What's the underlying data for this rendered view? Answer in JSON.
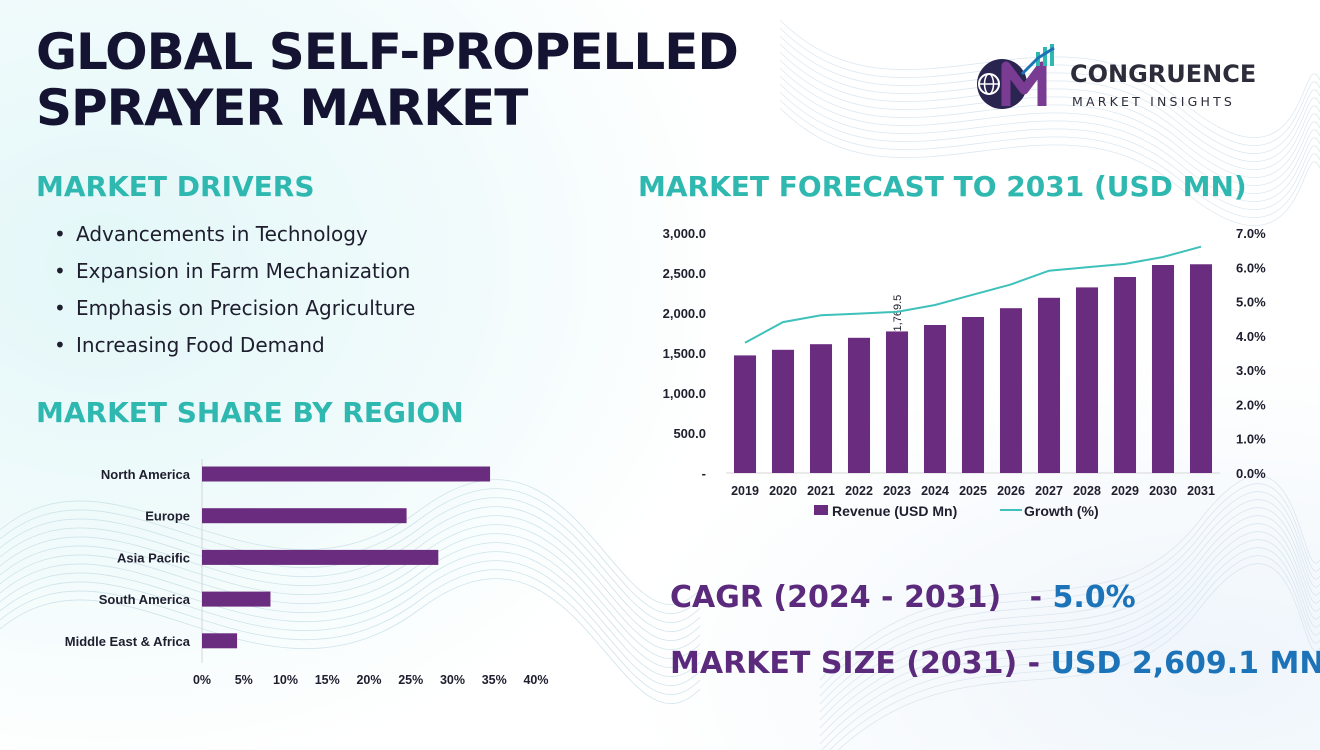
{
  "title_lines": [
    "GLOBAL SELF-PROPELLED",
    "SPRAYER MARKET"
  ],
  "logo": {
    "name": "CONGRUENCE",
    "tagline": "MARKET INSIGHTS",
    "icon": "cmi-monogram-icon"
  },
  "colors": {
    "title": "#141432",
    "heading": "#2fb8b0",
    "bar": "#6a2c7e",
    "growth_line": "#3fc1bb",
    "value": "#1d73b8"
  },
  "drivers": {
    "heading": "MARKET DRIVERS",
    "items": [
      "Advancements in Technology",
      "Expansion in Farm Mechanization",
      "Emphasis on Precision Agriculture",
      "Increasing Food Demand"
    ]
  },
  "region": {
    "heading": "MARKET SHARE BY REGION"
  },
  "forecast": {
    "heading": "MARKET FORECAST TO 2031 (USD MN)"
  },
  "stats": {
    "cagr_label": "CAGR (2024 - 2031)",
    "cagr_sep": " - ",
    "cagr_value": "5.0%",
    "size_label": "MARKET SIZE (2031)",
    "size_sep": " - ",
    "size_value": "USD 2,609.1 MN"
  },
  "chart_data": [
    {
      "type": "bar",
      "orientation": "horizontal",
      "title": "MARKET SHARE BY REGION",
      "categories": [
        "North America",
        "Europe",
        "Asia Pacific",
        "South America",
        "Middle East & Africa"
      ],
      "values": [
        34.5,
        24.5,
        28.3,
        8.2,
        4.2
      ],
      "xlim": [
        0,
        40
      ],
      "xticks": [
        "0%",
        "5%",
        "10%",
        "15%",
        "20%",
        "25%",
        "30%",
        "35%",
        "40%"
      ],
      "grid": false
    },
    {
      "type": "bar",
      "title": "MARKET FORECAST TO 2031 (USD MN)",
      "categories": [
        "2019",
        "2020",
        "2021",
        "2022",
        "2023",
        "2024",
        "2025",
        "2026",
        "2027",
        "2028",
        "2029",
        "2030",
        "2031"
      ],
      "series": [
        {
          "name": "Revenue (USD Mn)",
          "type": "bar",
          "axis": "left",
          "values": [
            1470,
            1540,
            1610,
            1690,
            1769.5,
            1850,
            1950,
            2060,
            2190,
            2320,
            2450,
            2600,
            2609.1
          ]
        },
        {
          "name": "Growth (%)",
          "type": "line",
          "axis": "right",
          "values": [
            3.8,
            4.4,
            4.6,
            4.65,
            4.7,
            4.9,
            5.2,
            5.5,
            5.9,
            6.0,
            6.1,
            6.3,
            6.6
          ]
        }
      ],
      "data_labels": [
        {
          "category": "2023",
          "text": "1,769.5"
        }
      ],
      "ylim_left": [
        0,
        3000
      ],
      "yticks_left": [
        "-",
        "500.0",
        "1,000.0",
        "1,500.0",
        "2,000.0",
        "2,500.0",
        "3,000.0"
      ],
      "ylim_right": [
        0,
        7
      ],
      "yticks_right": [
        "0.0%",
        "1.0%",
        "2.0%",
        "3.0%",
        "4.0%",
        "5.0%",
        "6.0%",
        "7.0%"
      ],
      "legend": "bottom",
      "grid": false
    }
  ]
}
